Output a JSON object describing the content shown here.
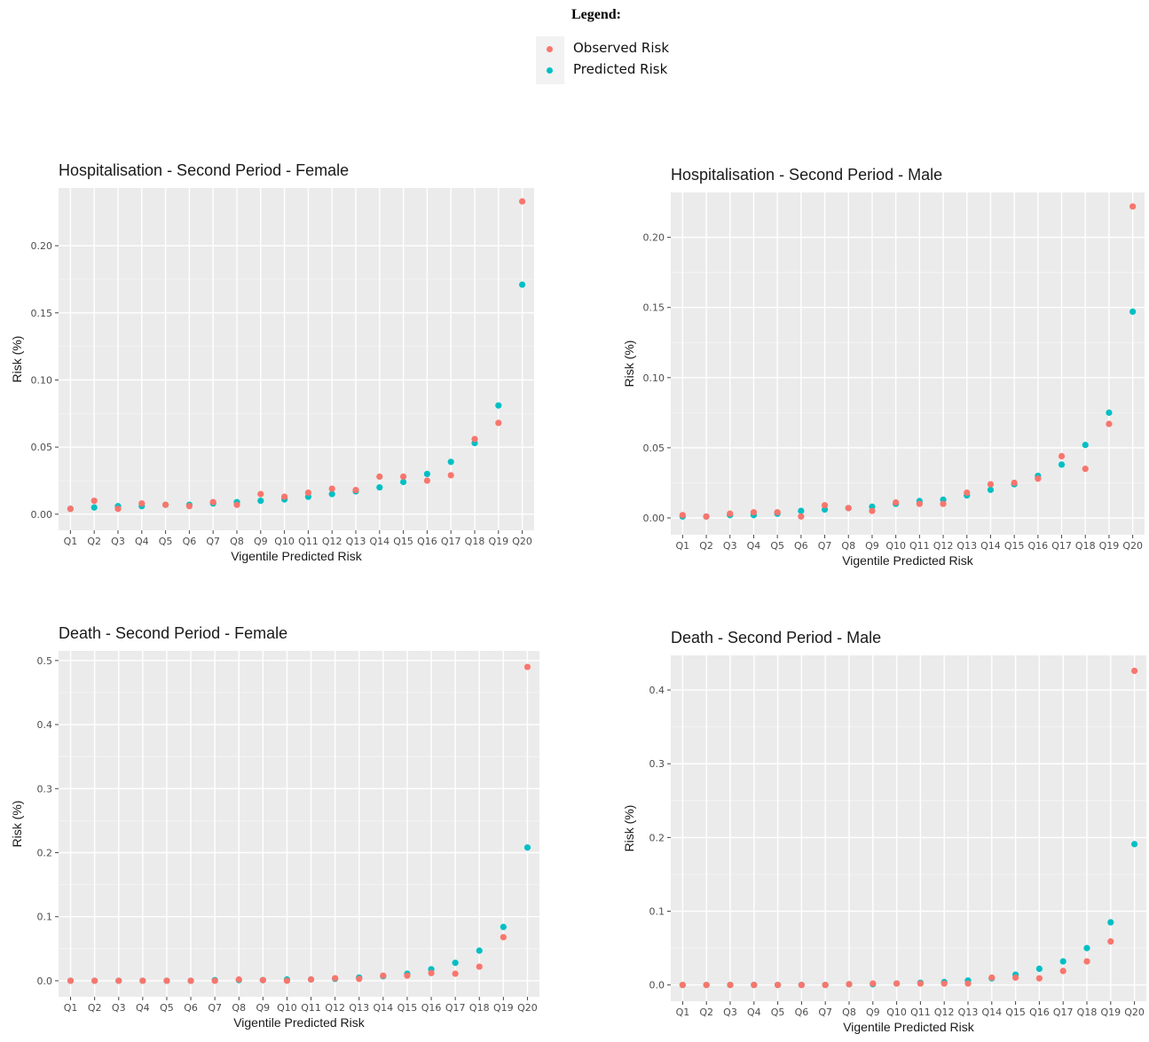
{
  "legend": {
    "title": "Legend:",
    "items": [
      {
        "label": "Observed Risk",
        "color": "#f8766d"
      },
      {
        "label": "Predicted Risk",
        "color": "#00bfc4"
      }
    ]
  },
  "chart_data": [
    {
      "type": "scatter",
      "title": "Hospitalisation - Second Period -  Female",
      "xlabel": "Vigentile Predicted Risk",
      "ylabel": "Risk (%)",
      "categories": [
        "Q1",
        "Q2",
        "Q3",
        "Q4",
        "Q5",
        "Q6",
        "Q7",
        "Q8",
        "Q9",
        "Q10",
        "Q11",
        "Q12",
        "Q13",
        "Q14",
        "Q15",
        "Q16",
        "Q17",
        "Q18",
        "Q19",
        "Q20"
      ],
      "yticks": [
        0.0,
        0.05,
        0.1,
        0.15,
        0.2
      ],
      "ytick_labels": [
        "0.00",
        "0.05",
        "0.10",
        "0.15",
        "0.20"
      ],
      "ylim": [
        -0.012,
        0.243
      ],
      "grid": true,
      "series": [
        {
          "name": "Observed Risk",
          "color": "#f8766d",
          "values": [
            0.004,
            0.01,
            0.004,
            0.008,
            0.007,
            0.006,
            0.009,
            0.007,
            0.015,
            0.013,
            0.016,
            0.019,
            0.018,
            0.028,
            0.028,
            0.025,
            0.029,
            0.056,
            0.068,
            0.233
          ]
        },
        {
          "name": "Predicted Risk",
          "color": "#00bfc4",
          "values": [
            0.004,
            0.005,
            0.006,
            0.006,
            0.007,
            0.007,
            0.008,
            0.009,
            0.01,
            0.011,
            0.013,
            0.015,
            0.017,
            0.02,
            0.024,
            0.03,
            0.039,
            0.053,
            0.081,
            0.171
          ]
        }
      ]
    },
    {
      "type": "scatter",
      "title": "Hospitalisation - Second Period -  Male",
      "xlabel": "Vigentile Predicted Risk",
      "ylabel": "Risk (%)",
      "categories": [
        "Q1",
        "Q2",
        "Q3",
        "Q4",
        "Q5",
        "Q6",
        "Q7",
        "Q8",
        "Q9",
        "Q10",
        "Q11",
        "Q12",
        "Q13",
        "Q14",
        "Q15",
        "Q16",
        "Q17",
        "Q18",
        "Q19",
        "Q20"
      ],
      "yticks": [
        0.0,
        0.05,
        0.1,
        0.15,
        0.2
      ],
      "ytick_labels": [
        "0.00",
        "0.05",
        "0.10",
        "0.15",
        "0.20"
      ],
      "ylim": [
        -0.012,
        0.232
      ],
      "grid": true,
      "series": [
        {
          "name": "Observed Risk",
          "color": "#f8766d",
          "values": [
            0.002,
            0.001,
            0.003,
            0.004,
            0.004,
            0.001,
            0.009,
            0.007,
            0.005,
            0.011,
            0.01,
            0.01,
            0.018,
            0.024,
            0.025,
            0.028,
            0.044,
            0.035,
            0.067,
            0.222
          ]
        },
        {
          "name": "Predicted Risk",
          "color": "#00bfc4",
          "values": [
            0.001,
            0.001,
            0.002,
            0.002,
            0.003,
            0.005,
            0.006,
            0.007,
            0.008,
            0.01,
            0.012,
            0.013,
            0.016,
            0.02,
            0.024,
            0.03,
            0.038,
            0.052,
            0.075,
            0.147
          ]
        }
      ]
    },
    {
      "type": "scatter",
      "title": "Death - Second Period -  Female",
      "xlabel": "Vigentile Predicted Risk",
      "ylabel": "Risk (%)",
      "categories": [
        "Q1",
        "Q2",
        "Q3",
        "Q4",
        "Q5",
        "Q6",
        "Q7",
        "Q8",
        "Q9",
        "Q10",
        "Q11",
        "Q12",
        "Q13",
        "Q14",
        "Q15",
        "Q16",
        "Q17",
        "Q18",
        "Q19",
        "Q20"
      ],
      "yticks": [
        0.0,
        0.1,
        0.2,
        0.3,
        0.4,
        0.5
      ],
      "ytick_labels": [
        "0.0",
        "0.1",
        "0.2",
        "0.3",
        "0.4",
        "0.5"
      ],
      "ylim": [
        -0.025,
        0.515
      ],
      "grid": true,
      "series": [
        {
          "name": "Observed Risk",
          "color": "#f8766d",
          "values": [
            0.0,
            0.0,
            0.0,
            0.0,
            0.0,
            0.0,
            0.0,
            0.002,
            0.001,
            0.0,
            0.002,
            0.004,
            0.003,
            0.008,
            0.008,
            0.012,
            0.011,
            0.022,
            0.068,
            0.49
          ]
        },
        {
          "name": "Predicted Risk",
          "color": "#00bfc4",
          "values": [
            0.0,
            0.0,
            0.0,
            0.0,
            0.0,
            0.0,
            0.001,
            0.001,
            0.001,
            0.002,
            0.002,
            0.003,
            0.005,
            0.007,
            0.011,
            0.018,
            0.028,
            0.047,
            0.084,
            0.208
          ]
        }
      ]
    },
    {
      "type": "scatter",
      "title": "Death - Second Period -  Male",
      "xlabel": "Vigentile Predicted Risk",
      "ylabel": "Risk (%)",
      "categories": [
        "Q1",
        "Q2",
        "Q3",
        "Q4",
        "Q5",
        "Q6",
        "Q7",
        "Q8",
        "Q9",
        "Q10",
        "Q11",
        "Q12",
        "Q13",
        "Q14",
        "Q15",
        "Q16",
        "Q17",
        "Q18",
        "Q19",
        "Q20"
      ],
      "yticks": [
        0.0,
        0.1,
        0.2,
        0.3,
        0.4
      ],
      "ytick_labels": [
        "0.0",
        "0.1",
        "0.2",
        "0.3",
        "0.4"
      ],
      "ylim": [
        -0.022,
        0.447
      ],
      "grid": true,
      "series": [
        {
          "name": "Observed Risk",
          "color": "#f8766d",
          "values": [
            0.0,
            0.0,
            0.0,
            0.0,
            0.0,
            0.0,
            0.0,
            0.001,
            0.002,
            0.002,
            0.002,
            0.002,
            0.002,
            0.01,
            0.01,
            0.009,
            0.019,
            0.032,
            0.059,
            0.426
          ]
        },
        {
          "name": "Predicted Risk",
          "color": "#00bfc4",
          "values": [
            0.0,
            0.0,
            0.0,
            0.0,
            0.0,
            0.0,
            0.0,
            0.001,
            0.001,
            0.002,
            0.003,
            0.004,
            0.006,
            0.009,
            0.014,
            0.022,
            0.032,
            0.05,
            0.085,
            0.191
          ]
        }
      ]
    }
  ]
}
